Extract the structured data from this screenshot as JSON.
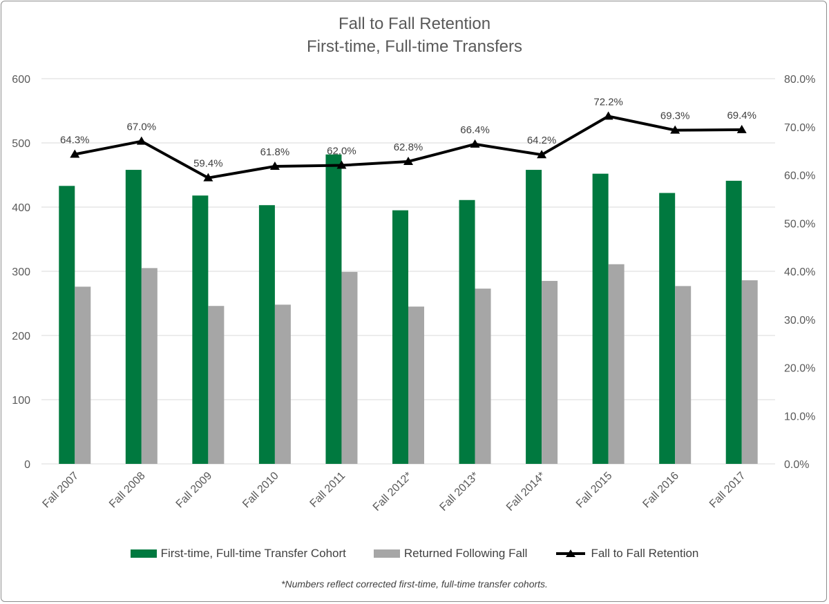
{
  "chart_data": {
    "type": "bar",
    "title": "Fall to Fall Retention",
    "subtitle": "First-time, Full-time Transfers",
    "categories": [
      "Fall 2007",
      "Fall 2008",
      "Fall 2009",
      "Fall 2010",
      "Fall 2011",
      "Fall 2012*",
      "Fall 2013*",
      "Fall 2014*",
      "Fall 2015",
      "Fall 2016",
      "Fall 2017"
    ],
    "series": [
      {
        "name": "First-time, Full-time Transfer Cohort",
        "type": "bar",
        "axis": "left",
        "color": "#00793f",
        "values": [
          433,
          458,
          418,
          403,
          482,
          395,
          411,
          458,
          452,
          422,
          441
        ]
      },
      {
        "name": "Returned Following Fall",
        "type": "bar",
        "axis": "left",
        "color": "#a6a6a6",
        "values": [
          276,
          305,
          246,
          248,
          299,
          245,
          273,
          285,
          311,
          277,
          286
        ]
      },
      {
        "name": "Fall to Fall Retention",
        "type": "line",
        "axis": "right",
        "color": "#000000",
        "values": [
          64.3,
          67.0,
          59.4,
          61.8,
          62.0,
          62.8,
          66.4,
          64.2,
          72.2,
          69.3,
          69.4
        ],
        "labels": [
          "64.3%",
          "67.0%",
          "59.4%",
          "61.8%",
          "62.0%",
          "62.8%",
          "66.4%",
          "64.2%",
          "72.2%",
          "69.3%",
          "69.4%"
        ]
      }
    ],
    "left_axis": {
      "ylim": [
        0,
        600
      ],
      "ticks": [
        "0",
        "100",
        "200",
        "300",
        "400",
        "500",
        "600"
      ]
    },
    "right_axis": {
      "ylim": [
        0,
        80
      ],
      "ticks": [
        "0.0%",
        "10.0%",
        "20.0%",
        "30.0%",
        "40.0%",
        "50.0%",
        "60.0%",
        "70.0%",
        "80.0%"
      ]
    },
    "grid": true,
    "legend": "bottom",
    "footnote": "*Numbers reflect corrected first-time, full-time transfer cohorts."
  }
}
